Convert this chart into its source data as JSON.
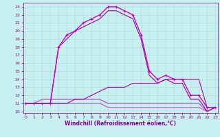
{
  "line1": {
    "x": [
      0,
      1,
      2,
      3,
      4,
      5,
      6,
      7,
      8,
      9,
      10,
      11,
      12,
      13,
      14,
      15,
      16,
      17,
      18,
      19,
      20,
      21,
      22,
      23
    ],
    "y": [
      11,
      11,
      11,
      11,
      18,
      19.5,
      20,
      21,
      21.5,
      22,
      23,
      23,
      22.5,
      22,
      19.5,
      15,
      14,
      14.5,
      14,
      14,
      12,
      12,
      10.5,
      10.5
    ],
    "color": "#cc00cc",
    "marker": "+",
    "markersize": 3,
    "linewidth": 1.0
  },
  "line2": {
    "x": [
      0,
      1,
      2,
      3,
      4,
      5,
      6,
      7,
      8,
      9,
      10,
      11,
      12,
      13,
      14,
      15,
      16,
      17,
      18,
      19,
      20,
      21,
      22,
      23
    ],
    "y": [
      11,
      11,
      11,
      11,
      18,
      19,
      20,
      20.5,
      21,
      21.5,
      22.5,
      22.5,
      22,
      21.5,
      19,
      14.5,
      13.5,
      14,
      13.5,
      13.5,
      11.5,
      11.5,
      10,
      10.5
    ],
    "color": "#990099",
    "marker": null,
    "markersize": 0,
    "linewidth": 0.8
  },
  "line3": {
    "x": [
      0,
      1,
      2,
      3,
      4,
      5,
      6,
      7,
      8,
      9,
      10,
      11,
      12,
      13,
      14,
      15,
      16,
      17,
      18,
      19,
      20,
      21,
      22,
      23
    ],
    "y": [
      11,
      11,
      11,
      11,
      11,
      11,
      11.5,
      11.5,
      12,
      12.5,
      13,
      13,
      13,
      13.5,
      13.5,
      13.5,
      13.5,
      14,
      14,
      14,
      14,
      14,
      10.5,
      10.5
    ],
    "color": "#aa00aa",
    "marker": null,
    "markersize": 0,
    "linewidth": 0.8
  },
  "line4": {
    "x": [
      0,
      1,
      2,
      3,
      4,
      5,
      6,
      7,
      8,
      9,
      10,
      11,
      12,
      13,
      14,
      15,
      16,
      17,
      18,
      19,
      20,
      21,
      22,
      23
    ],
    "y": [
      11,
      11,
      11.5,
      11.5,
      11.5,
      11.5,
      11.5,
      11.5,
      11.5,
      11.5,
      11,
      11,
      11,
      11,
      11,
      11,
      11,
      11,
      11,
      11,
      11,
      11,
      10,
      10.5
    ],
    "color": "#bb44bb",
    "marker": null,
    "markersize": 0,
    "linewidth": 0.8
  },
  "line5": {
    "x": [
      0,
      1,
      2,
      3,
      4,
      5,
      6,
      7,
      8,
      9,
      10,
      11,
      12,
      13,
      14,
      15,
      16,
      17,
      18,
      19,
      20,
      21,
      22,
      23
    ],
    "y": [
      11,
      11,
      11,
      11,
      11,
      11,
      11,
      11,
      11,
      11,
      10.5,
      10.5,
      10.5,
      10.5,
      10.5,
      10.5,
      10.5,
      10.5,
      10.5,
      10.5,
      10.5,
      10.5,
      10,
      10.5
    ],
    "color": "#cc44cc",
    "marker": null,
    "markersize": 0,
    "linewidth": 0.8
  },
  "xlim": [
    -0.3,
    23.3
  ],
  "ylim": [
    9.8,
    23.5
  ],
  "xticks": [
    0,
    1,
    2,
    3,
    4,
    5,
    6,
    7,
    8,
    9,
    10,
    11,
    12,
    13,
    14,
    15,
    16,
    17,
    18,
    19,
    20,
    21,
    22,
    23
  ],
  "yticks": [
    10,
    11,
    12,
    13,
    14,
    15,
    16,
    17,
    18,
    19,
    20,
    21,
    22,
    23
  ],
  "xlabel": "Windchill (Refroidissement éolien,°C)",
  "background_color": "#c8f0f0",
  "grid_color": "#a8dada",
  "tick_color": "#880088",
  "label_color": "#880088"
}
